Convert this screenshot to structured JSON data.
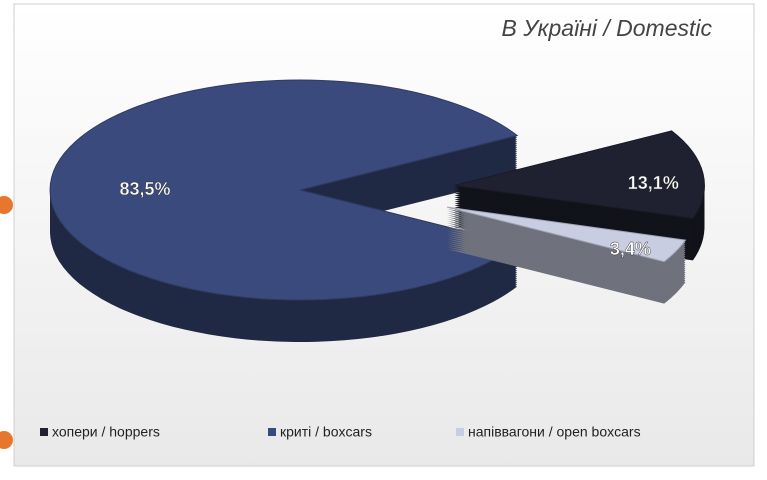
{
  "chart_data": {
    "type": "pie3d",
    "title": "В Україні / Domestic",
    "categories": [
      "хопери / hoppers",
      "криті / boxcars",
      "напіввагони / open boxcars"
    ],
    "values": [
      13.1,
      83.5,
      3.4
    ],
    "value_labels": [
      "13,1%",
      "83,5%",
      "3,4%"
    ],
    "colors": [
      "#1f2130",
      "#3b4a7c",
      "#c9cde2"
    ],
    "legend": "bottom"
  }
}
